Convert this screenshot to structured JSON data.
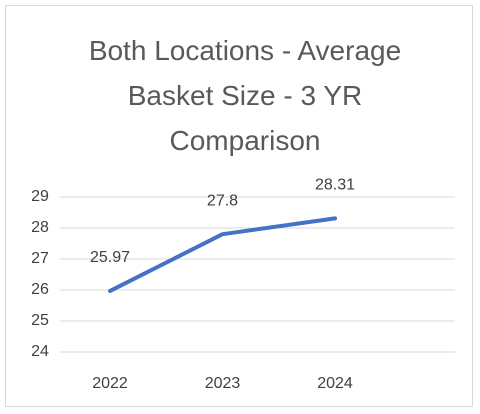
{
  "chart_data": {
    "type": "line",
    "title": "Both Locations - Average Basket Size - 3 YR Comparison",
    "categories": [
      "2022",
      "2023",
      "2024"
    ],
    "values": [
      25.97,
      27.8,
      28.31
    ],
    "color": "#4472c4",
    "ylim": [
      24,
      29
    ],
    "yticks": [
      24,
      25,
      26,
      27,
      28,
      29
    ],
    "grid": true
  }
}
